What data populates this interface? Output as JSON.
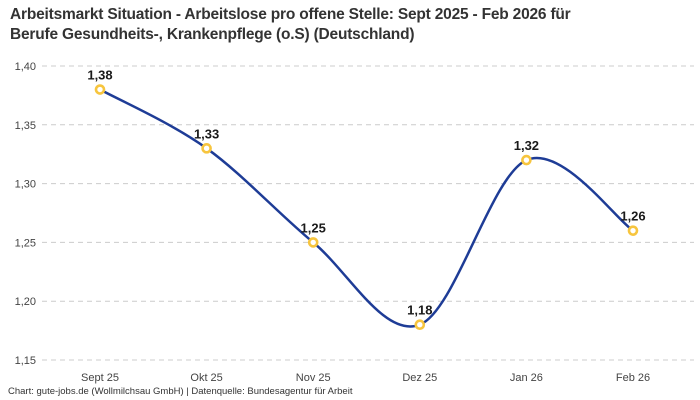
{
  "header": {
    "title_line1": "Arbeitsmarkt Situation - Arbeitslose pro offene Stelle: Sept 2025 - Feb 2026 für",
    "title_line2": "Berufe Gesundheits-, Krankenpflege (o.S) (Deutschland)"
  },
  "footer": {
    "credit": "Chart: gute-jobs.de (Wollmilchsau GmbH) | Datenquelle: Bundesagentur für Arbeit"
  },
  "chart_data": {
    "type": "line",
    "title": "Arbeitsmarkt Situation - Arbeitslose pro offene Stelle: Sept 2025 - Feb 2026 für Berufe Gesundheits-, Krankenpflege (o.S) (Deutschland)",
    "categories": [
      "Sept 25",
      "Okt 25",
      "Nov 25",
      "Dez 25",
      "Jan 26",
      "Feb 26"
    ],
    "values": [
      1.38,
      1.33,
      1.25,
      1.18,
      1.32,
      1.26
    ],
    "point_labels": [
      "1,38",
      "1,33",
      "1,25",
      "1,18",
      "1,32",
      "1,26"
    ],
    "xlabel": "",
    "ylabel": "",
    "ylim": [
      1.15,
      1.4
    ],
    "yticks": [
      1.4,
      1.35,
      1.3,
      1.25,
      1.2,
      1.15
    ],
    "ytick_labels": [
      "1,40",
      "1,35",
      "1,30",
      "1,25",
      "1,20",
      "1,15"
    ],
    "grid": "horizontal-dashed",
    "legend_position": "none",
    "line_style": "spline",
    "colors": {
      "line": "#1e3c96",
      "marker_ring": "#f7c53e",
      "marker_fill": "#ffffff",
      "grid": "#cccccc",
      "point_label": "#1a1a1a",
      "tick_label": "#444444",
      "title": "#333333"
    }
  }
}
